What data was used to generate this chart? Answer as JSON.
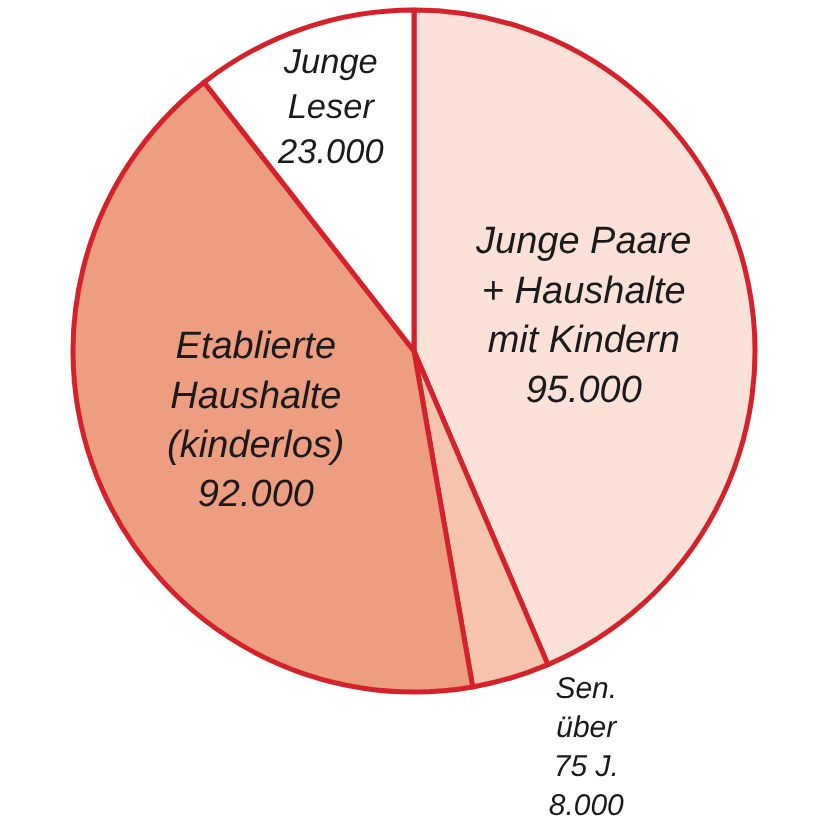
{
  "chart_data": {
    "type": "pie",
    "categories": [
      "Junge Paare\n+ Haushalte\nmit Kindern",
      "Sen.\nüber\n75 J.",
      "Etablierte\nHaushalte\n(kinderlos)",
      "Junge\nLeser"
    ],
    "values": [
      95000,
      8000,
      92000,
      23000
    ],
    "value_labels": [
      "95.000",
      "8.000",
      "92.000",
      "23.000"
    ],
    "colors": [
      "#fbe1d7",
      "#f6c3ad",
      "#ee9e80",
      "#ffffff"
    ],
    "legend": false
  }
}
